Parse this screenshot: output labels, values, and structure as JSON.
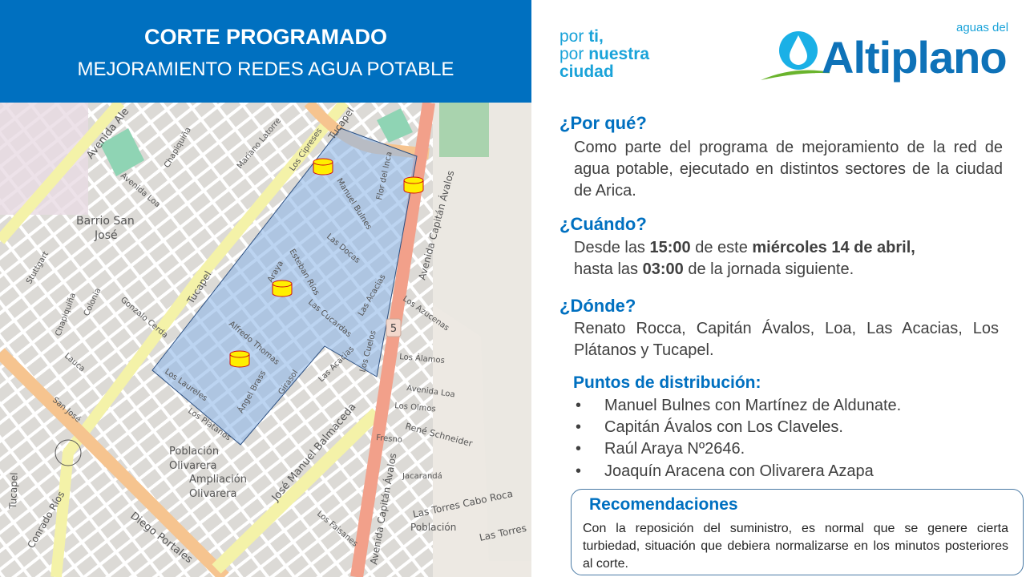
{
  "banner": {
    "title": "CORTE PROGRAMADO",
    "subtitle": "MEJORAMIENTO REDES AGUA POTABLE"
  },
  "slogan": {
    "line1_a": "por ",
    "line1_b": "ti,",
    "line2_a": "por ",
    "line2_b": "nuestra",
    "line3": "ciudad"
  },
  "logo": {
    "name": "Altiplano",
    "prefix": "aguas del",
    "colors": {
      "drop": "#1ab0e6",
      "text": "#0e72b8",
      "swoosh": "#6ab42d"
    }
  },
  "colors": {
    "banner": "#0070c0",
    "heading": "#0070c0",
    "body": "#404040",
    "zone": "#8fb8e8",
    "marker": "#ffef00",
    "marker_stroke": "#d01010"
  },
  "por_que": {
    "heading": "¿Por qué?",
    "text": "Como parte del programa de mejoramiento de la red de agua potable, ejecutado en distintos sectores de la ciudad de Arica."
  },
  "cuando": {
    "heading": "¿Cuándo?",
    "t1": "Desde las ",
    "b1": "15:00",
    "t2": " de este ",
    "b2": "miércoles 14 de abril,",
    "t3": " hasta las ",
    "b3": "03:00",
    "t4": " de la jornada siguiente."
  },
  "donde": {
    "heading": "¿Dónde?",
    "text": "Renato Rocca, Capitán Ávalos, Loa, Las Acacias, Los Plátanos y Tucapel."
  },
  "puntos": {
    "heading": "Puntos de distribución:",
    "bullet": "•",
    "items": [
      "Manuel Bulnes con Martínez de Aldunate.",
      "Capitán Ávalos con Los Claveles.",
      "Raúl Araya Nº2646.",
      "Joaquín Aracena con Olivarera Azapa"
    ]
  },
  "recomendaciones": {
    "heading": "Recomendaciones",
    "text": "Con la reposición del suministro, es normal que se genere cierta turbiedad, situación que debiera normalizarse en los minutos posteriores al corte."
  },
  "map": {
    "route_shield": "5",
    "labels": [
      "Avenida Ale",
      "Tucapel",
      "Tucapel",
      "Tucapel",
      "Avenida Loa",
      "Barrio San",
      "José",
      "Chapiquiña",
      "Manuel Bulnes",
      "Las Docas",
      "Esteban Ríos",
      "Araya",
      "Las Cucardas",
      "Las Acacias",
      "Alfredo Thomas",
      "Los Laureles",
      "Los Plátanos",
      "Ángel Brass",
      "Girasol",
      "Población",
      "Olivarera",
      "Ampliación",
      "Olivarera",
      "Diego Portales",
      "José Manuel Balmaceda",
      "Avenida Capitán Ávalos",
      "Avenida Capitán Ávalos",
      "René Schneider",
      "Los Álamos",
      "Avenida Loa",
      "Los Olmos",
      "Población",
      "Las Torres Cabo Roca",
      "Gonzalo Cerda",
      "Los Cipreses",
      "Flor del Inca",
      "Mariano Latorre",
      "Los Cuelos",
      "Las Acacias",
      "Los Azucenas",
      "Fresno",
      "Jacarandá",
      "Los Faisanes",
      "Las Torres",
      "Chapiquiña",
      "Colonia",
      "Stuttgart",
      "Lauca",
      "San José",
      "Conrado Ríos"
    ]
  }
}
